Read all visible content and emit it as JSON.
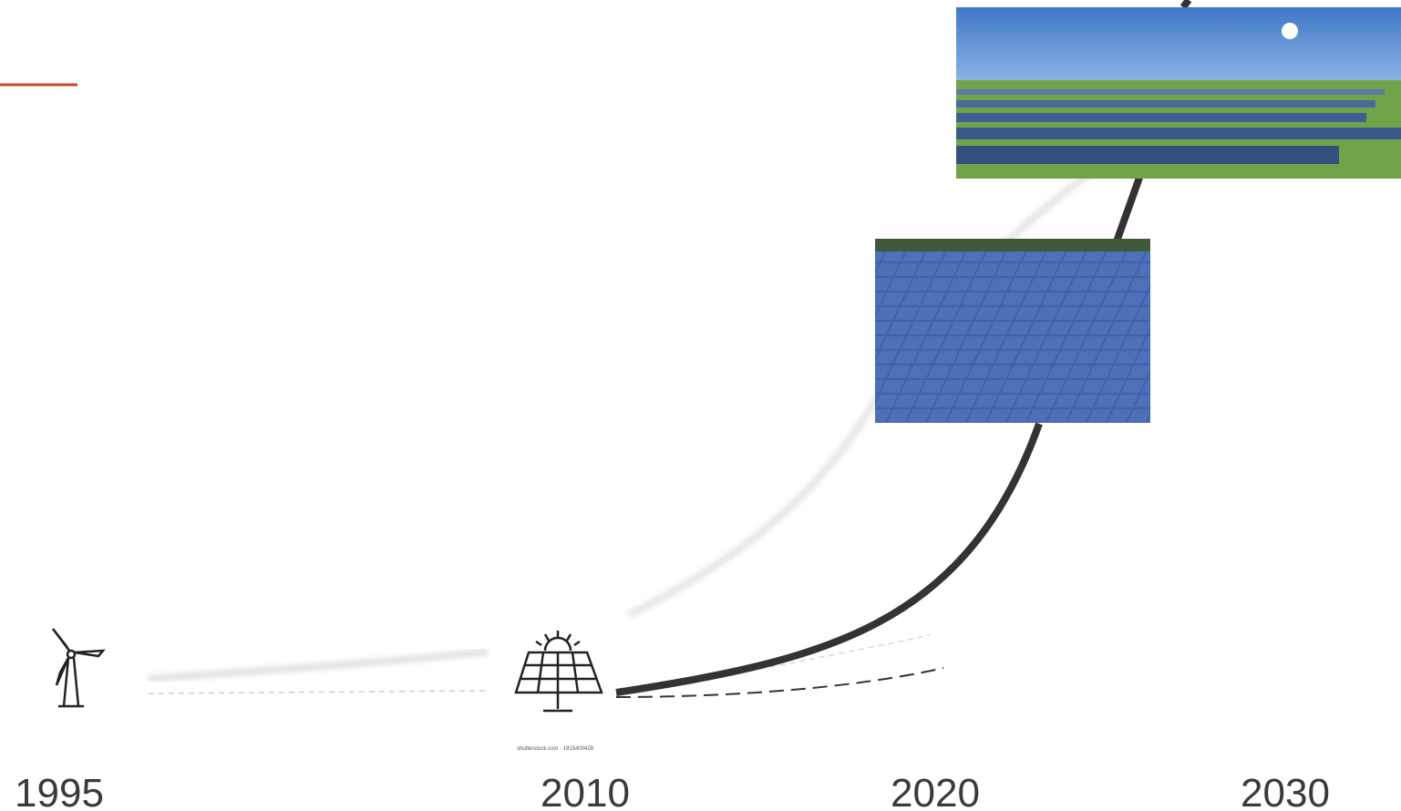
{
  "timeline": {
    "years": [
      "1995",
      "2010",
      "2020",
      "2030"
    ]
  },
  "watermark": "shutterstock.com · 1915400428"
}
